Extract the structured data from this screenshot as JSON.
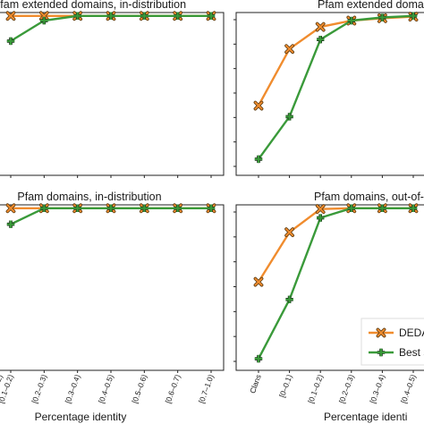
{
  "chart_data": [
    {
      "type": "line",
      "title": "Pfam extended domains, in-distribution",
      "categories": [
        "[0.1–0.2)",
        "[0.2–0.3)",
        "[0.3–0.4)",
        "[0.4–0.5)",
        "[0.5–0.6)",
        "[0.6–0.7)",
        "[0.7–1.0)"
      ],
      "show_xticks": false,
      "ylim": [
        0,
        1
      ],
      "series": [
        {
          "name": "DEDA",
          "color": "#f08c2e",
          "values": [
            0.99,
            0.99,
            0.99,
            0.99,
            0.99,
            0.99,
            0.99
          ]
        },
        {
          "name": "Best s",
          "color": "#3a9a3a",
          "values": [
            0.83,
            0.96,
            0.99,
            0.99,
            0.99,
            0.99,
            0.99
          ]
        }
      ]
    },
    {
      "type": "line",
      "title": "Pfam extended domains, out-of-distribution",
      "categories": [
        "Clans",
        "[0–0.1)",
        "[0.1–0.2)",
        "[0.2–0.3)",
        "[0.3–0.4)",
        "[0.4–0.5)"
      ],
      "show_xticks": false,
      "ylim": [
        0,
        1
      ],
      "series": [
        {
          "name": "DEDA",
          "color": "#f08c2e",
          "values": [
            0.42,
            0.78,
            0.92,
            0.96,
            0.975,
            0.985
          ]
        },
        {
          "name": "Best s",
          "color": "#3a9a3a",
          "values": [
            0.08,
            0.35,
            0.84,
            0.96,
            0.98,
            0.99
          ]
        }
      ]
    },
    {
      "type": "line",
      "title": "Pfam domains, in-distribution",
      "categories": [
        "[0.1–0.2)",
        "[0.2–0.3)",
        "[0.3–0.4)",
        "[0.4–0.5)",
        "[0.5–0.6)",
        "[0.6–0.7)",
        "[0.7–1.0)"
      ],
      "show_xticks": true,
      "ylim": [
        0,
        1
      ],
      "series": [
        {
          "name": "DEDA",
          "color": "#f08c2e",
          "values": [
            0.99,
            0.99,
            0.99,
            0.99,
            0.99,
            0.99,
            0.99
          ]
        },
        {
          "name": "Best s",
          "color": "#3a9a3a",
          "values": [
            0.89,
            0.99,
            0.99,
            0.99,
            0.99,
            0.99,
            0.99
          ]
        }
      ]
    },
    {
      "type": "line",
      "title": "Pfam domains, out-of-distribution",
      "categories": [
        "Clans",
        "[0–0.1)",
        "[0.1–0.2)",
        "[0.2–0.3)",
        "[0.3–0.4)",
        "[0.4–0.5)"
      ],
      "show_xticks": true,
      "ylim": [
        0,
        1
      ],
      "series": [
        {
          "name": "DEDA",
          "color": "#f08c2e",
          "values": [
            0.53,
            0.84,
            0.985,
            0.99,
            0.99,
            0.99
          ]
        },
        {
          "name": "Best s",
          "color": "#3a9a3a",
          "values": [
            0.05,
            0.42,
            0.93,
            0.99,
            0.99,
            0.99
          ]
        }
      ]
    }
  ],
  "xlabel_left": "Percentage identity",
  "xlabel_right": "Percentage identi",
  "left_panel_leading_tick": "0–0.2)",
  "legend": [
    {
      "label": "DEDA",
      "color": "#f08c2e",
      "marker": "x"
    },
    {
      "label": "Best s",
      "color": "#3a9a3a",
      "marker": "plus"
    }
  ]
}
